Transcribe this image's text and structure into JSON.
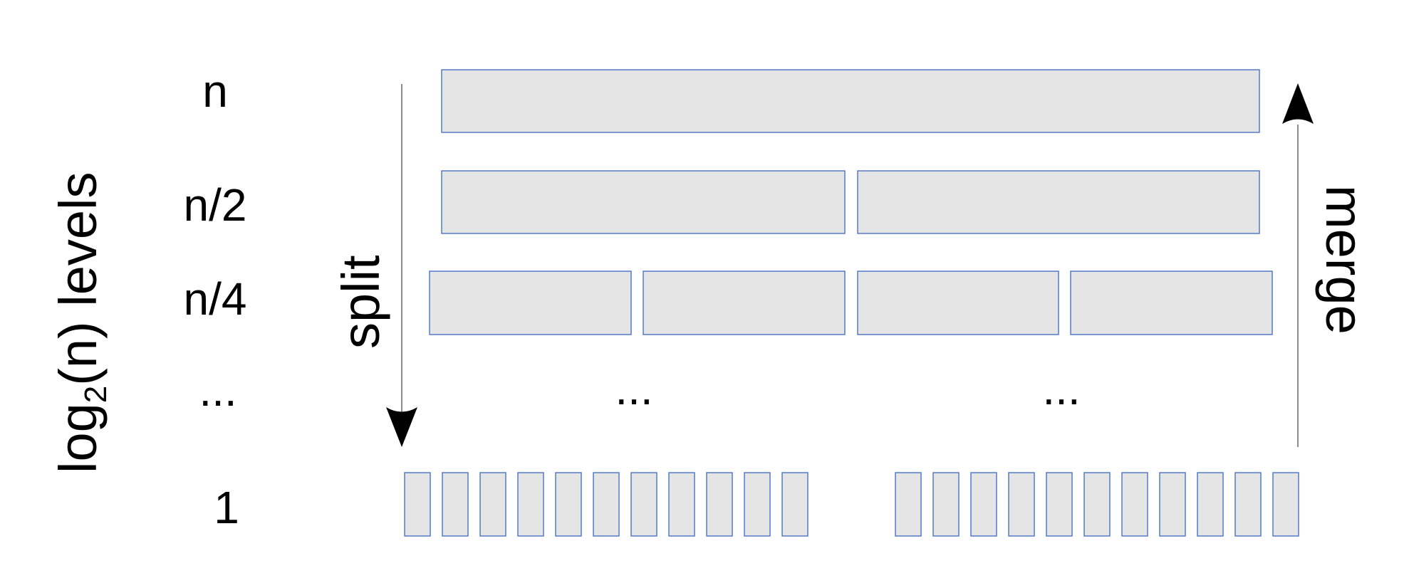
{
  "axis_label": {
    "prefix": "log",
    "subscript": "2",
    "suffix": "(n) levels"
  },
  "level_labels": [
    "n",
    "n/2",
    "n/4",
    "...",
    "1"
  ],
  "split_label": "split",
  "merge_label": "merge",
  "ellipsis": "...",
  "levels": [
    {
      "label": "n",
      "blocks": 1
    },
    {
      "label": "n/2",
      "blocks": 2
    },
    {
      "label": "n/4",
      "blocks": 4
    },
    {
      "label": "...",
      "blocks": 0
    },
    {
      "label": "1",
      "blocks": 22
    }
  ],
  "colors": {
    "block_fill": "#e5e5e5",
    "block_border": "#4a72c4",
    "text": "#000000"
  }
}
